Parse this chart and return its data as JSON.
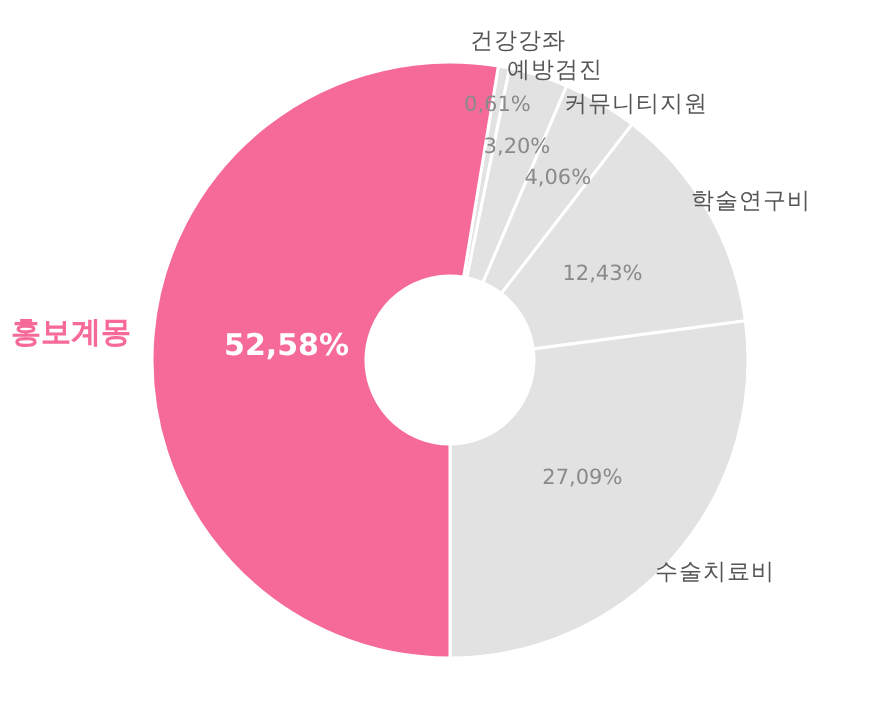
{
  "chart_data": {
    "type": "donut",
    "categories": [
      "건강강좌",
      "예방검진",
      "커뮤니티지원",
      "학술연구비",
      "수술치료비",
      "홍보계몽"
    ],
    "values": [
      0.61,
      3.2,
      4.06,
      12.43,
      27.09,
      52.58
    ],
    "colors": [
      "#e2e2e2",
      "#e2e2e2",
      "#e2e2e2",
      "#e2e2e2",
      "#e2e2e2",
      "#f66a9a"
    ],
    "value_labels": [
      "0,61%",
      "3,20%",
      "4,06%",
      "12,43%",
      "27,09%",
      "52,58%"
    ]
  }
}
